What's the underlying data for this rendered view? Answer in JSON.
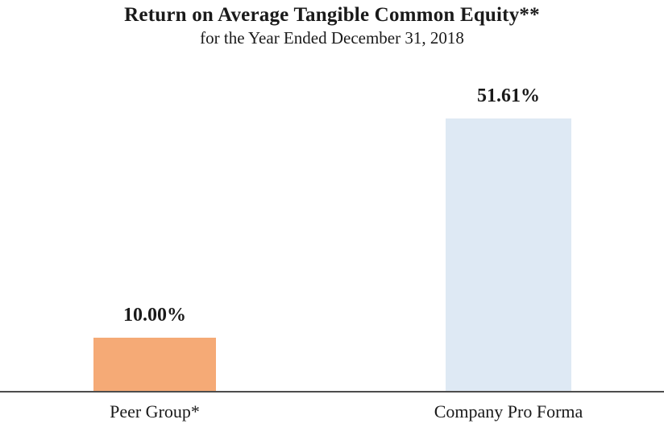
{
  "chart_data": {
    "type": "bar",
    "title": "Return on Average Tangible Common Equity**",
    "subtitle": "for the Year Ended December 31, 2018",
    "categories": [
      "Peer Group*",
      "Company Pro Forma"
    ],
    "values": [
      10.0,
      51.61
    ],
    "value_labels": [
      "10.00%",
      "51.61%"
    ],
    "series": [
      {
        "name": "Return on Average Tangible Common Equity",
        "values": [
          10.0,
          51.61
        ]
      }
    ],
    "bar_colors": [
      "#F5AA76",
      "#DEE9F4"
    ],
    "axis_line_color": "#4D4D4D",
    "text_color": "#1A1A1A",
    "xlabel": "",
    "ylabel": "",
    "ylim": [
      0,
      55
    ],
    "grid": false,
    "legend": false,
    "value_label_position": "above-bar"
  }
}
